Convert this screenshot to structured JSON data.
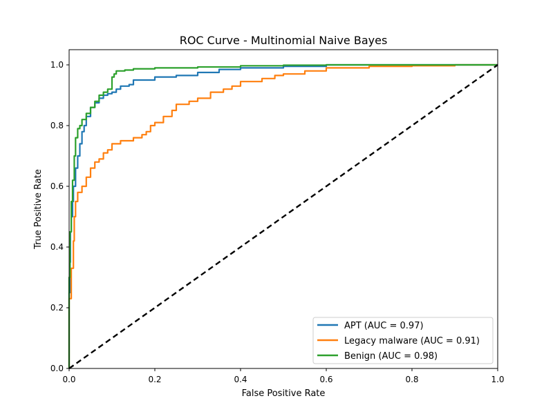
{
  "chart_data": {
    "type": "line",
    "title": "ROC Curve - Multinomial Naive Bayes",
    "xlabel": "False Positive Rate",
    "ylabel": "True Positive Rate",
    "xlim": [
      0.0,
      1.0
    ],
    "ylim": [
      0.0,
      1.05
    ],
    "x_ticks": [
      "0.0",
      "0.2",
      "0.4",
      "0.6",
      "0.8",
      "1.0"
    ],
    "y_ticks": [
      "0.0",
      "0.2",
      "0.4",
      "0.6",
      "0.8",
      "1.0"
    ],
    "grid": false,
    "legend_position": "lower-right",
    "series": [
      {
        "name": "APT (AUC = 0.97)",
        "color": "#1f77b4",
        "points": [
          [
            0,
            0
          ],
          [
            0,
            0.25
          ],
          [
            0.002,
            0.35
          ],
          [
            0.003,
            0.45
          ],
          [
            0.005,
            0.5
          ],
          [
            0.008,
            0.55
          ],
          [
            0.01,
            0.6
          ],
          [
            0.015,
            0.66
          ],
          [
            0.02,
            0.7
          ],
          [
            0.025,
            0.74
          ],
          [
            0.03,
            0.78
          ],
          [
            0.035,
            0.8
          ],
          [
            0.04,
            0.83
          ],
          [
            0.05,
            0.86
          ],
          [
            0.06,
            0.875
          ],
          [
            0.07,
            0.89
          ],
          [
            0.08,
            0.9
          ],
          [
            0.09,
            0.905
          ],
          [
            0.1,
            0.91
          ],
          [
            0.11,
            0.92
          ],
          [
            0.12,
            0.93
          ],
          [
            0.14,
            0.935
          ],
          [
            0.15,
            0.95
          ],
          [
            0.2,
            0.96
          ],
          [
            0.25,
            0.965
          ],
          [
            0.3,
            0.975
          ],
          [
            0.35,
            0.985
          ],
          [
            0.4,
            0.99
          ],
          [
            0.5,
            0.995
          ],
          [
            0.6,
            1.0
          ],
          [
            1.0,
            1.0
          ]
        ]
      },
      {
        "name": "Legacy malware (AUC = 0.91)",
        "color": "#ff7f0e",
        "points": [
          [
            0,
            0
          ],
          [
            0,
            0.23
          ],
          [
            0.005,
            0.33
          ],
          [
            0.01,
            0.42
          ],
          [
            0.012,
            0.5
          ],
          [
            0.015,
            0.55
          ],
          [
            0.02,
            0.58
          ],
          [
            0.03,
            0.6
          ],
          [
            0.04,
            0.63
          ],
          [
            0.05,
            0.66
          ],
          [
            0.06,
            0.68
          ],
          [
            0.07,
            0.69
          ],
          [
            0.08,
            0.71
          ],
          [
            0.09,
            0.72
          ],
          [
            0.1,
            0.74
          ],
          [
            0.12,
            0.75
          ],
          [
            0.15,
            0.76
          ],
          [
            0.17,
            0.77
          ],
          [
            0.18,
            0.78
          ],
          [
            0.19,
            0.8
          ],
          [
            0.2,
            0.81
          ],
          [
            0.22,
            0.83
          ],
          [
            0.24,
            0.85
          ],
          [
            0.25,
            0.87
          ],
          [
            0.28,
            0.88
          ],
          [
            0.3,
            0.89
          ],
          [
            0.33,
            0.91
          ],
          [
            0.36,
            0.92
          ],
          [
            0.38,
            0.93
          ],
          [
            0.4,
            0.945
          ],
          [
            0.45,
            0.955
          ],
          [
            0.48,
            0.965
          ],
          [
            0.5,
            0.97
          ],
          [
            0.55,
            0.98
          ],
          [
            0.6,
            0.99
          ],
          [
            0.7,
            0.995
          ],
          [
            0.8,
            0.997
          ],
          [
            0.9,
            1.0
          ],
          [
            1.0,
            1.0
          ]
        ]
      },
      {
        "name": "Benign (AUC = 0.98)",
        "color": "#2ca02c",
        "points": [
          [
            0,
            0
          ],
          [
            0,
            0.3
          ],
          [
            0.002,
            0.45
          ],
          [
            0.005,
            0.55
          ],
          [
            0.008,
            0.62
          ],
          [
            0.012,
            0.7
          ],
          [
            0.015,
            0.76
          ],
          [
            0.02,
            0.79
          ],
          [
            0.025,
            0.8
          ],
          [
            0.03,
            0.82
          ],
          [
            0.04,
            0.84
          ],
          [
            0.05,
            0.86
          ],
          [
            0.06,
            0.88
          ],
          [
            0.07,
            0.9
          ],
          [
            0.08,
            0.91
          ],
          [
            0.09,
            0.92
          ],
          [
            0.1,
            0.93
          ],
          [
            0.1,
            0.96
          ],
          [
            0.105,
            0.97
          ],
          [
            0.11,
            0.98
          ],
          [
            0.13,
            0.983
          ],
          [
            0.15,
            0.987
          ],
          [
            0.2,
            0.99
          ],
          [
            0.3,
            0.993
          ],
          [
            0.4,
            0.997
          ],
          [
            0.5,
            0.999
          ],
          [
            0.6,
            1.0
          ],
          [
            1.0,
            1.0
          ]
        ]
      }
    ],
    "reference_line": {
      "color": "#000000",
      "points": [
        [
          0,
          0
        ],
        [
          1,
          1
        ]
      ],
      "style": "dashed"
    }
  }
}
